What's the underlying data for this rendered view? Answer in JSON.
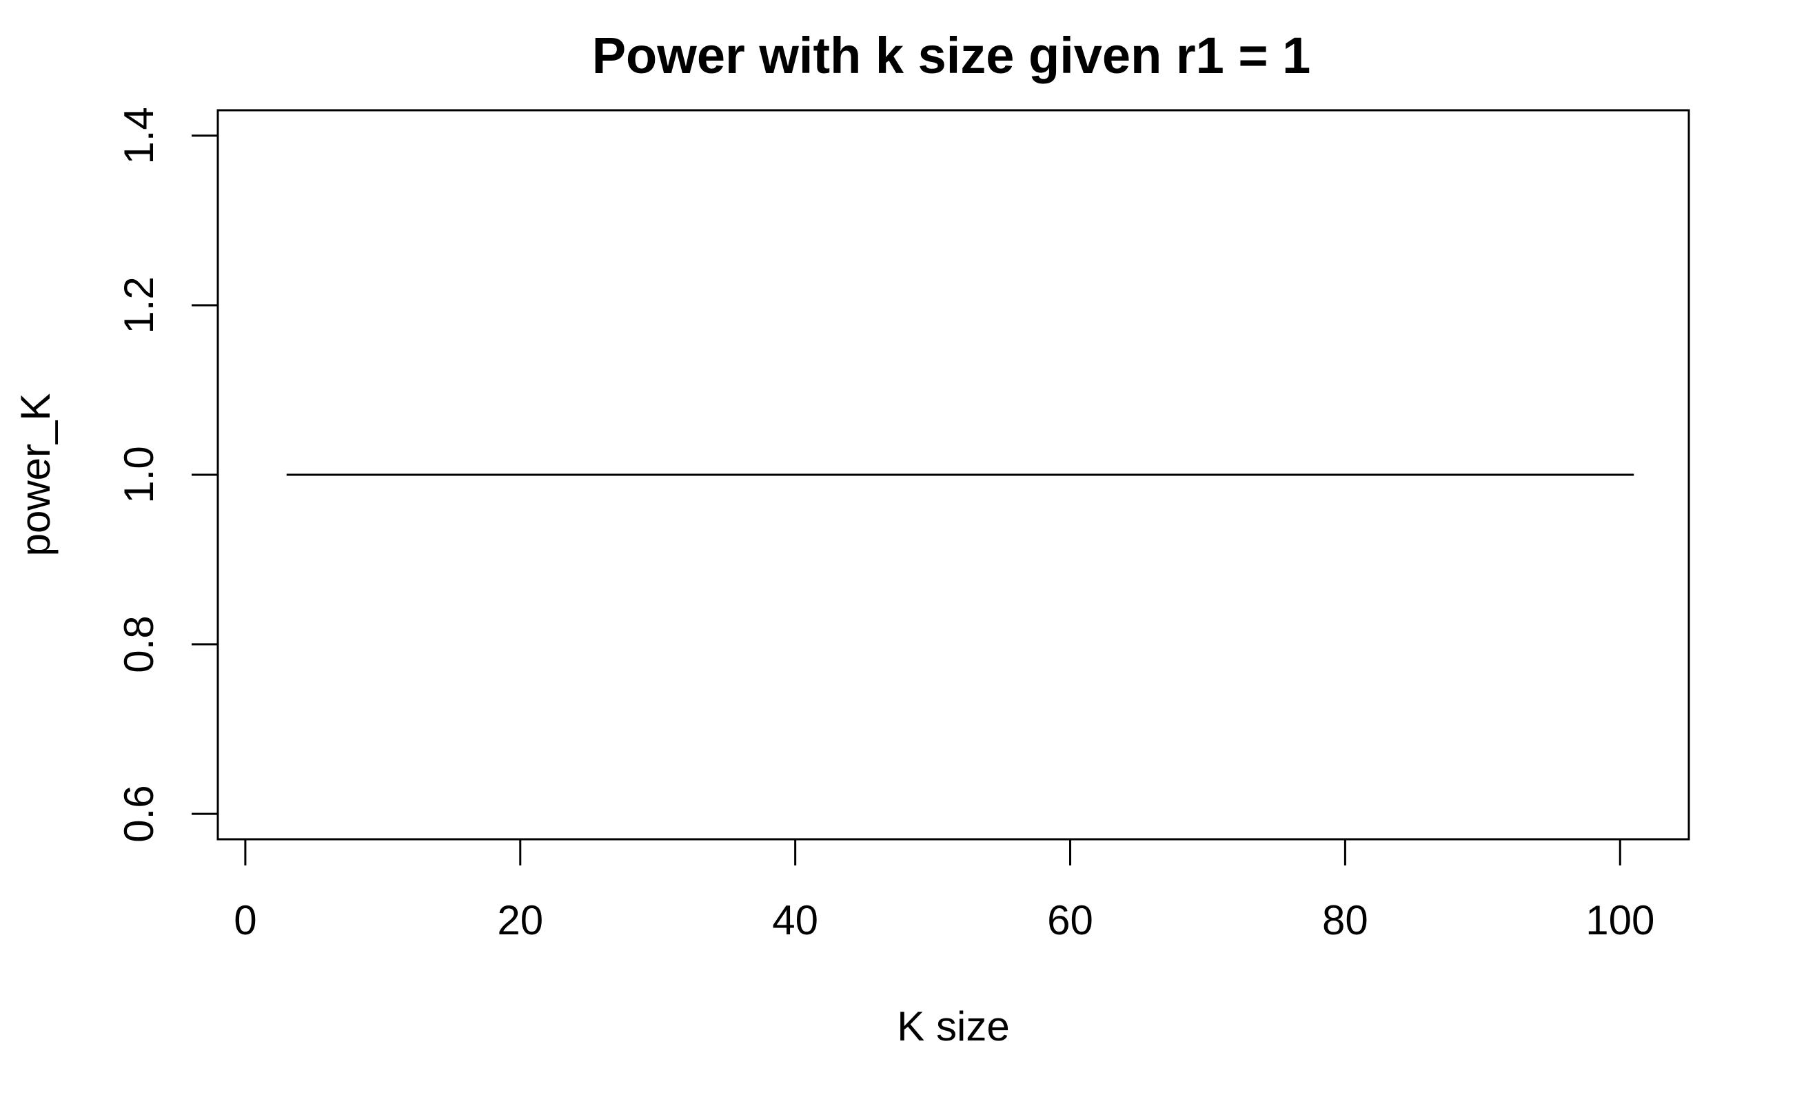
{
  "chart_data": {
    "type": "line",
    "title": "Power with k size given r1 = 1",
    "xlabel": "K size",
    "ylabel": "power_K",
    "xlim": [
      -2,
      105
    ],
    "ylim": [
      0.57,
      1.43
    ],
    "x_ticks": [
      0,
      20,
      40,
      60,
      80,
      100
    ],
    "x_tick_labels": [
      "0",
      "20",
      "40",
      "60",
      "80",
      "100"
    ],
    "y_ticks": [
      0.6,
      0.8,
      1.0,
      1.2,
      1.4
    ],
    "y_tick_labels": [
      "0.6",
      "0.8",
      "1.0",
      "1.2",
      "1.4"
    ],
    "grid": false,
    "series": [
      {
        "x": [
          3,
          101
        ],
        "y": [
          1.0,
          1.0
        ],
        "color": "#000000"
      }
    ]
  }
}
